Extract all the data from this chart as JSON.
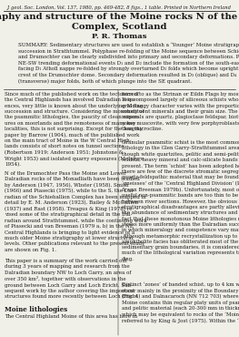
{
  "journal_line": "J. geol. Soc. London, Vol. 137, 1980, pp. 469-482, 8 figs., 1 table. Printed in Northern Ireland",
  "title": "The stratigraphy and structure of the Moine rocks N of the Schiehallion\nComplex, Scotland",
  "author": "P. R. Thomas",
  "summary_block": "SUMMARY: Sedimentary structures are used to establish a ‘Younger’ Moine stratigraphical\nsuccession in Strathtummel. Polyphase re-folding of the Moine sequence between Schiehallion\nand Drumochter can be clearly subdivided into primary and secondary deformations. Primary\nNE-SW trending deformational events D₁ and D₂ include the formation of the south-eastward\nfacing D₁ Atholl nappe re-folded by strongly overturned D₂ folds which become upright on the\ncrest of the Drumochter dome. Secondary deformation resulted in D₃ (oblique) and D₄\n(transverse) major folds, both of which plunge into the SE quadrant.",
  "col1_p1": "Since much of the published work on the tectonics of\nthe Central Highlands has involved Dalradian sequ-\nences, very little is known about the underlying Moine\nsuccession and structure. Considering the monotony of\nthe psammitic lithologies, the paucity of clean expos-\nures on moorlands and the remoteness of many key\nlocalities, this is not surprising. Except for the lengthy\npaper by Barrow (1904), much of the published work\non the main tract of Moine in the W Central High-\nlands consists of short notes on tunnel sections\n(Robertson 1919; Anderson 1951; Johnstone &\nWright 1953) and isolated quarry exposures (McIntyre\n1954).",
  "col1_p2": "N of the Drumochter Pass the Moine and Lower\nDalradian rocks of the Monadliath have been studied\nby Anderson (1947, 1956), Wbster (1958), Smith\n(1966) and Piasecki (1975), while to the S, the Dal-\nradian of the Schiehallion Complex has been mapped in\ndetail by E. M. Anderson (1923), Bailey & McCallien\n(1937) and Rast (1958). Treagus & King (1978) re-\nvised some of the stratigraphical detail in the Dal-\nradian around Strathtummel, while the continuing work\nof Piasecki and van Breeman (1979 a, b) in the NE\nCentral Highlands is bringing to light evidence of a\nmuch older Moine stratigraphy at lower structural\nlevels. Other publications relevant to the present study\nare shown on Fig. 1.",
  "col1_p3": "This paper is a summary of the work carried out\nduring 3 years of mapping and research from the\nDalradian boundary NW to Loch Garry, an area of\nover 350 km², together with observations in the\nground between Loch Garry and Loch Ericht. Sub-\nsequent work by the author covering the important\nstructures found more recently between Loch Ericht",
  "col1_section": "Moine lithologies",
  "col1_p4": "The Central Highland Moine of this area has here in",
  "col2_p1": "ferred to as the Strinan or Eildn Flags by most authors.\nIt is composed largely of siliceous schists whose gen-\neral flaggy character varies with the proportion of the\nconstituent minerals and their grain size. The main\nminerals are quartz, plagioclase feldspar, biotite and\nsome muscovite, with very few porphyroblasts, other\nthan microcline.",
  "col2_p2": "Granular psammitic schist is the most common\nlithology in the Glen Garry-Strathtummel area,\nthough white quartzites, pelitic and semi-pelitic\nschists, heavy mineral and calc-silicate bands are also\npresent. The term ‘schist’ has been adopted here since\nthere are few of the discrete stromatic segregations of\nquartz-feldspathic material that may be found in the\n‘gneisses’ of the ‘Central Highland Division’ (Piasecki\n& van Breeman 1979b). Unfortunately, most of the\nuseful non-psammitic bands are too thin to be traced\nbetween river sections. However, the obvious litho-\nstratigraphical disadvantages are partly alleviated by\nthe abundance of sedimentary structures and by the\nfact that these monotonous Moine lithologies react to\nstress more uniformly than the Dalradian succession,\nin which mineralogy and competence vary markedly.\nAlthough metamorphic recrystallization up to lower\namphibolite facies has obliterated most of the original\nsedimentary grain boundaries, it is considered that\nmuch of the lithological variation represents true bed-\nding.",
  "col2_p3": "Distinct ‘zones’ of banded schist, up to 4 km wide,\noccur mainly in the proximity of the Boundary Slide\n(Fig. 4) and Dalnacaroch (NN 712 703) where the\nMoine contains thin regular platy units of psammitic\nand pelitic material (each 20-300 mm in thickness)\nwhich may be equivalent to rocks of the ‘Moine Phase’\nreferred to by King & Jost (1975). Within the ‘banded",
  "background_color": "#f0efe8",
  "text_color": "#1a1a1a"
}
